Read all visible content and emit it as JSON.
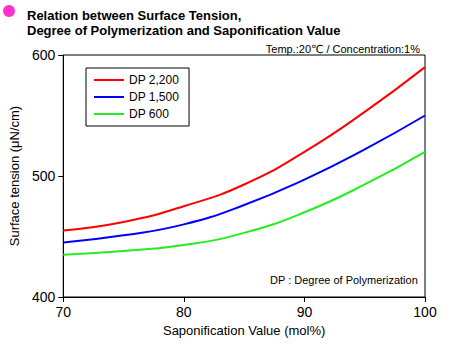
{
  "chart_data": {
    "type": "line",
    "title": "Relation between Surface Tension,\nDegree of Polymerization and Saponification Value",
    "subtitle": "Temp.:20℃ / Concentration:1%",
    "annotation": "DP : Degree of Polymerization",
    "x_label": "Saponification Value (mol%)",
    "y_label": "Surface tension (μN/cm)",
    "x": [
      70,
      75,
      80,
      85,
      90,
      95,
      100
    ],
    "series": [
      {
        "name": "DP 2,200",
        "color": "#ff0000",
        "values": [
          455,
          462,
          475,
          493,
          520,
          553,
          590
        ]
      },
      {
        "name": "DP 1,500",
        "color": "#0000ff",
        "values": [
          445,
          451,
          460,
          476,
          497,
          522,
          550
        ]
      },
      {
        "name": "DP 600",
        "color": "#22ee22",
        "values": [
          435,
          438,
          443,
          453,
          470,
          493,
          520
        ]
      }
    ],
    "xlim": [
      70,
      100
    ],
    "xticks": [
      70,
      80,
      90,
      100
    ],
    "ylim": [
      400,
      600
    ],
    "yticks": [
      400,
      500,
      600
    ],
    "grid": false,
    "legend": "upper left",
    "marker": "none"
  }
}
